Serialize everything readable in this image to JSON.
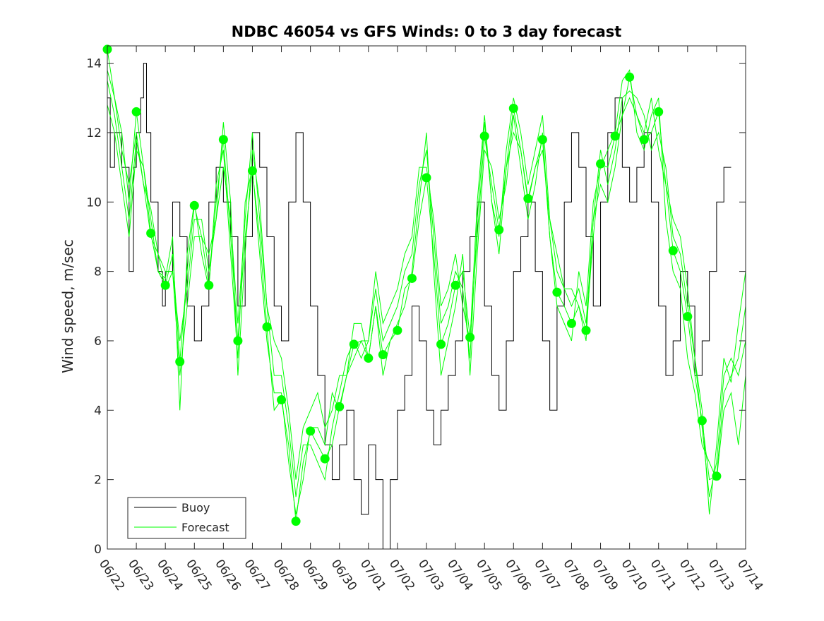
{
  "chart_data": {
    "type": "line",
    "title": "NDBC 46054 vs GFS Winds: 0 to 3 day forecast",
    "xlabel": "",
    "ylabel": "Wind speed, m/sec",
    "x_ticks": [
      "06/22",
      "06/23",
      "06/24",
      "06/25",
      "06/26",
      "06/27",
      "06/28",
      "06/29",
      "06/30",
      "07/01",
      "07/02",
      "07/03",
      "07/04",
      "07/05",
      "07/06",
      "07/07",
      "07/08",
      "07/09",
      "07/10",
      "07/11",
      "07/12",
      "07/13",
      "07/14"
    ],
    "xlim": [
      0,
      22
    ],
    "ylim": [
      0,
      14.5
    ],
    "y_ticks": [
      0,
      2,
      4,
      6,
      8,
      10,
      12,
      14
    ],
    "grid": false,
    "legend": {
      "placement": "bottom-left",
      "entries": [
        "Buoy",
        "Forecast"
      ]
    },
    "colors": {
      "buoy": "#000000",
      "forecast": "#00ff00",
      "axes": "#262626"
    },
    "series": [
      {
        "name": "Buoy",
        "style": "step",
        "x": [
          0,
          0.1,
          0.25,
          0.5,
          0.75,
          0.9,
          1.0,
          1.15,
          1.25,
          1.35,
          1.5,
          1.75,
          1.9,
          2.0,
          2.25,
          2.5,
          2.75,
          3.0,
          3.25,
          3.5,
          3.75,
          4.0,
          4.25,
          4.5,
          4.75,
          5.0,
          5.25,
          5.5,
          5.75,
          6.0,
          6.25,
          6.5,
          6.75,
          7.0,
          7.25,
          7.5,
          7.75,
          8.0,
          8.25,
          8.5,
          8.75,
          9.0,
          9.25,
          9.5,
          9.75,
          10.0,
          10.25,
          10.5,
          10.75,
          11.0,
          11.25,
          11.5,
          11.75,
          12.0,
          12.25,
          12.5,
          12.75,
          13.0,
          13.25,
          13.5,
          13.75,
          14.0,
          14.25,
          14.5,
          14.75,
          15.0,
          15.25,
          15.5,
          15.75,
          16.0,
          16.25,
          16.5,
          16.75,
          17.0,
          17.25,
          17.5,
          17.75,
          18.0,
          18.25,
          18.5,
          18.75,
          19.0,
          19.25,
          19.5,
          19.75,
          20.0,
          20.25,
          20.5,
          20.75,
          21.0,
          21.25
        ],
        "y": [
          13,
          11,
          12,
          11,
          8,
          11,
          12,
          13,
          14,
          12,
          10,
          8,
          7,
          8,
          10,
          9,
          7,
          6,
          7,
          10,
          11,
          10,
          9,
          7,
          9,
          12,
          11,
          9,
          7,
          6,
          10,
          12,
          10,
          7,
          5,
          3,
          2,
          3,
          4,
          2,
          1,
          3,
          2,
          0,
          2,
          4,
          5,
          7,
          6,
          4,
          3,
          4,
          5,
          6,
          8,
          9,
          10,
          7,
          5,
          4,
          6,
          8,
          9,
          10,
          8,
          6,
          4,
          7,
          10,
          12,
          11,
          9,
          7,
          10,
          12,
          13,
          11,
          10,
          11,
          12,
          10,
          7,
          5,
          6,
          8,
          7,
          5,
          6,
          8,
          10,
          11
        ]
      },
      {
        "name": "Forecast",
        "style": "markers",
        "x": [
          0,
          1,
          1.5,
          2,
          2.5,
          3,
          3.5,
          4,
          4.5,
          5,
          5.5,
          6,
          6.5,
          7,
          7.5,
          8,
          8.5,
          9,
          9.5,
          10,
          10.5,
          11,
          11.5,
          12,
          12.5,
          13,
          13.5,
          14,
          14.5,
          15,
          15.5,
          16,
          16.5,
          17,
          17.5,
          18,
          18.5,
          19,
          19.5,
          20,
          20.5,
          21
        ],
        "y": [
          14.4,
          12.6,
          9.1,
          7.6,
          5.4,
          9.9,
          7.6,
          11.8,
          6.0,
          10.9,
          6.4,
          4.3,
          0.8,
          3.4,
          2.6,
          4.1,
          5.9,
          5.5,
          5.6,
          6.3,
          7.8,
          10.7,
          5.9,
          7.6,
          6.1,
          11.9,
          9.2,
          12.7,
          10.1,
          11.8,
          7.4,
          6.5,
          6.3,
          11.1,
          11.9,
          13.6,
          11.8,
          12.6,
          8.6,
          6.7,
          3.7,
          2.1
        ]
      },
      {
        "name": "Forecast",
        "style": "line",
        "x": [
          0,
          0.25,
          0.5,
          0.75,
          1.0,
          1.25,
          1.5,
          1.75,
          2.0,
          2.25,
          2.5,
          2.75,
          3.0,
          3.25,
          3.5,
          3.75,
          4.0,
          4.25,
          4.5,
          4.75,
          5.0,
          5.25,
          5.5,
          5.75,
          6.0,
          6.25,
          6.5,
          6.75,
          7.0,
          7.25,
          7.5,
          7.75,
          8.0,
          8.25,
          8.5,
          8.75,
          9.0,
          9.25,
          9.5,
          9.75,
          10.0,
          10.25,
          10.5,
          10.75,
          11.0,
          11.25,
          11.5,
          11.75,
          12.0,
          12.25,
          12.5,
          12.75,
          13.0,
          13.25,
          13.5,
          13.75,
          14.0,
          14.25,
          14.5,
          14.75,
          15.0,
          15.25,
          15.5,
          15.75,
          16.0,
          16.25,
          16.5,
          16.75,
          17.0,
          17.25,
          17.5,
          17.75,
          18.0,
          18.25,
          18.5,
          18.75,
          19.0,
          19.25,
          19.5,
          19.75,
          20.0,
          20.25,
          20.5,
          20.75,
          21.0,
          21.25,
          21.5,
          21.75,
          22.0
        ],
        "y": [
          14.4,
          13.0,
          12.0,
          10.0,
          12.6,
          11.0,
          9.1,
          8.0,
          7.6,
          8.5,
          5.4,
          8.0,
          9.9,
          9.0,
          7.6,
          10.0,
          11.8,
          9.0,
          6.0,
          9.0,
          10.9,
          9.0,
          6.4,
          4.0,
          4.3,
          3.0,
          0.8,
          2.5,
          3.4,
          3.0,
          2.6,
          3.0,
          4.1,
          5.0,
          5.9,
          6.0,
          5.5,
          7.0,
          5.6,
          6.0,
          6.3,
          7.5,
          7.8,
          9.5,
          10.7,
          8.5,
          5.9,
          6.5,
          7.6,
          8.0,
          6.1,
          9.0,
          11.9,
          10.5,
          9.2,
          11.0,
          12.7,
          11.5,
          10.1,
          11.0,
          11.8,
          9.0,
          7.4,
          7.0,
          6.5,
          7.0,
          6.3,
          9.0,
          11.1,
          11.0,
          11.9,
          12.5,
          13.6,
          12.5,
          11.8,
          12.0,
          12.6,
          10.5,
          8.6,
          8.0,
          6.7,
          5.0,
          3.7,
          2.0,
          2.1,
          4.5,
          5.0,
          5.5,
          7.0
        ]
      },
      {
        "name": "Forecast",
        "style": "line",
        "x": [
          0,
          0.25,
          0.5,
          0.75,
          1.0,
          1.25,
          1.5,
          1.75,
          2.0,
          2.25,
          2.5,
          2.75,
          3.0,
          3.25,
          3.5,
          3.75,
          4.0,
          4.25,
          4.5,
          4.75,
          5.0,
          5.25,
          5.5,
          5.75,
          6.0,
          6.25,
          6.5,
          6.75,
          7.0,
          7.25,
          7.5,
          7.75,
          8.0,
          8.25,
          8.5,
          8.75,
          9.0,
          9.25,
          9.5,
          9.75,
          10.0,
          10.25,
          10.5,
          10.75,
          11.0,
          11.25,
          11.5,
          11.75,
          12.0,
          12.25,
          12.5,
          12.75,
          13.0,
          13.25,
          13.5,
          13.75,
          14.0,
          14.25,
          14.5,
          14.75,
          15.0,
          15.25,
          15.5,
          15.75,
          16.0,
          16.25,
          16.5,
          16.75,
          17.0,
          17.25,
          17.5,
          17.75,
          18.0,
          18.25,
          18.5,
          18.75,
          19.0,
          19.25,
          19.5,
          19.75,
          20.0,
          20.25,
          20.5,
          20.75,
          21.0,
          21.25,
          21.5,
          21.75,
          22.0
        ],
        "y": [
          13.5,
          12.5,
          11.0,
          9.5,
          11.8,
          10.5,
          9.8,
          8.5,
          8.0,
          8.0,
          6.0,
          7.5,
          9.5,
          9.5,
          8.0,
          9.5,
          12.3,
          10.0,
          5.0,
          8.5,
          11.5,
          10.0,
          7.0,
          5.0,
          5.0,
          3.5,
          1.5,
          3.0,
          3.0,
          2.5,
          2.0,
          3.5,
          4.5,
          5.5,
          6.0,
          5.5,
          6.0,
          7.5,
          6.0,
          6.5,
          7.0,
          8.0,
          8.5,
          10.5,
          11.5,
          9.0,
          6.5,
          7.0,
          8.0,
          7.5,
          5.5,
          9.5,
          12.3,
          10.0,
          9.0,
          11.5,
          13.0,
          12.0,
          10.5,
          11.5,
          12.5,
          9.5,
          8.0,
          7.5,
          7.0,
          7.5,
          6.5,
          9.5,
          11.5,
          10.5,
          11.5,
          13.0,
          13.2,
          13.0,
          12.5,
          11.5,
          12.0,
          11.0,
          9.0,
          8.5,
          7.0,
          5.5,
          3.5,
          1.5,
          2.5,
          5.0,
          5.5,
          5.0,
          6.0
        ]
      },
      {
        "name": "Forecast",
        "style": "line",
        "x": [
          0,
          0.25,
          0.5,
          0.75,
          1.0,
          1.25,
          1.5,
          1.75,
          2.0,
          2.25,
          2.5,
          2.75,
          3.0,
          3.25,
          3.5,
          3.75,
          4.0,
          4.25,
          4.5,
          4.75,
          5.0,
          5.25,
          5.5,
          5.75,
          6.0,
          6.25,
          6.5,
          6.75,
          7.0,
          7.25,
          7.5,
          7.75,
          8.0,
          8.25,
          8.5,
          8.75,
          9.0,
          9.25,
          9.5,
          9.75,
          10.0,
          10.25,
          10.5,
          10.75,
          11.0,
          11.25,
          11.5,
          11.75,
          12.0,
          12.25,
          12.5,
          12.75,
          13.0,
          13.25,
          13.5,
          13.75,
          14.0,
          14.25,
          14.5,
          14.75,
          15.0,
          15.25,
          15.5,
          15.75,
          16.0,
          16.25,
          16.5,
          16.75,
          17.0,
          17.25,
          17.5,
          17.75,
          18.0,
          18.25,
          18.5,
          18.75,
          19.0,
          19.25,
          19.5,
          19.75,
          20.0,
          20.25,
          20.5,
          20.75,
          21.0,
          21.25,
          21.5,
          21.75,
          22.0
        ],
        "y": [
          12.8,
          12.0,
          10.5,
          9.0,
          11.5,
          11.0,
          9.5,
          8.0,
          7.8,
          9.0,
          4.0,
          8.5,
          10.0,
          8.5,
          7.5,
          10.5,
          11.5,
          8.5,
          5.5,
          10.0,
          11.0,
          8.5,
          6.0,
          4.5,
          4.5,
          2.5,
          1.0,
          2.0,
          3.5,
          3.5,
          3.0,
          4.5,
          4.0,
          5.0,
          6.5,
          6.5,
          5.5,
          7.0,
          5.0,
          6.0,
          6.5,
          7.0,
          8.0,
          10.0,
          12.0,
          8.0,
          5.0,
          6.0,
          7.0,
          8.5,
          5.0,
          8.5,
          11.5,
          11.0,
          9.5,
          10.5,
          12.5,
          11.0,
          9.5,
          10.5,
          12.0,
          9.0,
          7.0,
          6.5,
          6.0,
          8.0,
          7.0,
          10.0,
          11.0,
          11.5,
          12.0,
          13.5,
          13.8,
          12.0,
          11.5,
          12.5,
          13.0,
          9.5,
          8.0,
          7.5,
          5.5,
          4.5,
          3.0,
          2.5,
          2.0,
          4.0,
          4.5,
          3.0,
          5.0
        ]
      },
      {
        "name": "Forecast",
        "style": "line",
        "x": [
          0,
          0.25,
          0.5,
          0.75,
          1.0,
          1.25,
          1.5,
          1.75,
          2.0,
          2.25,
          2.5,
          2.75,
          3.0,
          3.25,
          3.5,
          3.75,
          4.0,
          4.25,
          4.5,
          4.75,
          5.0,
          5.25,
          5.5,
          5.75,
          6.0,
          6.25,
          6.5,
          6.75,
          7.0,
          7.25,
          7.5,
          7.75,
          8.0,
          8.25,
          8.5,
          8.75,
          9.0,
          9.25,
          9.5,
          9.75,
          10.0,
          10.25,
          10.5,
          10.75,
          11.0,
          11.25,
          11.5,
          11.75,
          12.0,
          12.25,
          12.5,
          12.75,
          13.0,
          13.25,
          13.5,
          13.75,
          14.0,
          14.25,
          14.5,
          14.75,
          15.0,
          15.25,
          15.5,
          15.75,
          16.0,
          16.25,
          16.5,
          16.75,
          17.0,
          17.25,
          17.5,
          17.75,
          18.0,
          18.25,
          18.5,
          18.75,
          19.0,
          19.25,
          19.5,
          19.75,
          20.0,
          20.25,
          20.5,
          20.75,
          21.0,
          21.25,
          21.5,
          21.75,
          22.0
        ],
        "y": [
          13.8,
          13.0,
          11.5,
          10.5,
          12.0,
          10.5,
          9.0,
          8.5,
          7.5,
          8.0,
          5.0,
          7.0,
          9.0,
          9.0,
          8.5,
          9.5,
          11.0,
          9.5,
          6.5,
          9.5,
          12.0,
          9.5,
          7.0,
          6.0,
          5.5,
          4.0,
          2.0,
          3.5,
          4.0,
          4.5,
          3.5,
          4.0,
          5.0,
          5.0,
          5.5,
          6.0,
          6.0,
          8.0,
          6.5,
          7.0,
          7.5,
          8.5,
          9.0,
          11.0,
          11.0,
          9.5,
          7.0,
          7.5,
          8.5,
          7.0,
          6.0,
          10.0,
          12.5,
          10.0,
          8.5,
          11.0,
          12.0,
          11.5,
          10.0,
          11.0,
          11.5,
          9.5,
          8.5,
          7.5,
          7.5,
          7.0,
          6.0,
          9.5,
          10.5,
          10.0,
          11.0,
          12.5,
          13.0,
          12.5,
          12.0,
          13.0,
          11.5,
          10.5,
          9.5,
          9.0,
          7.5,
          5.5,
          4.0,
          1.0,
          3.0,
          5.5,
          4.8,
          6.5,
          8.0
        ]
      }
    ]
  }
}
